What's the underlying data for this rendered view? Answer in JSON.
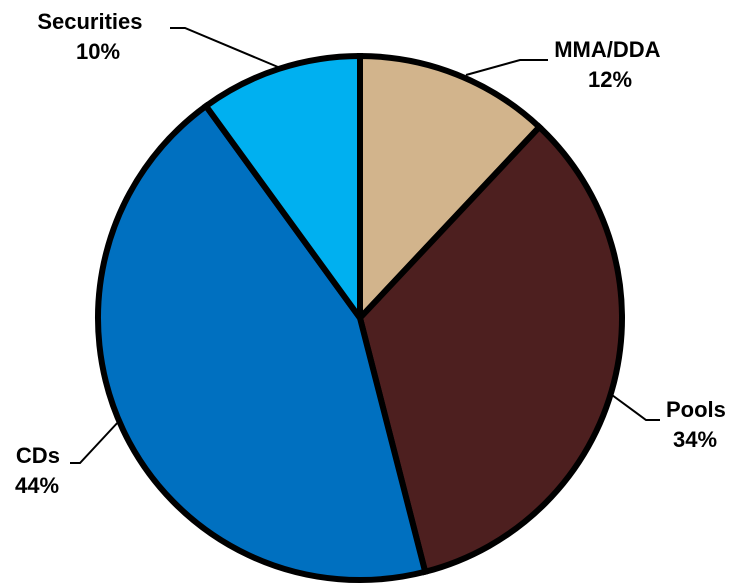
{
  "chart_data": {
    "type": "pie",
    "start_angle_deg": 0,
    "direction": "clockwise",
    "slices": [
      {
        "label": "MMA/DDA",
        "percent_label": "12%",
        "value": 12,
        "color": "#D2B48C"
      },
      {
        "label": "Pools",
        "percent_label": "34%",
        "value": 34,
        "color": "#4D1F1F"
      },
      {
        "label": "CDs",
        "percent_label": "44%",
        "value": 44,
        "color": "#0070C0"
      },
      {
        "label": "Securities",
        "percent_label": "10%",
        "value": 10,
        "color": "#00B0F0"
      }
    ],
    "legend": "none",
    "labels": "outside with leader lines"
  }
}
